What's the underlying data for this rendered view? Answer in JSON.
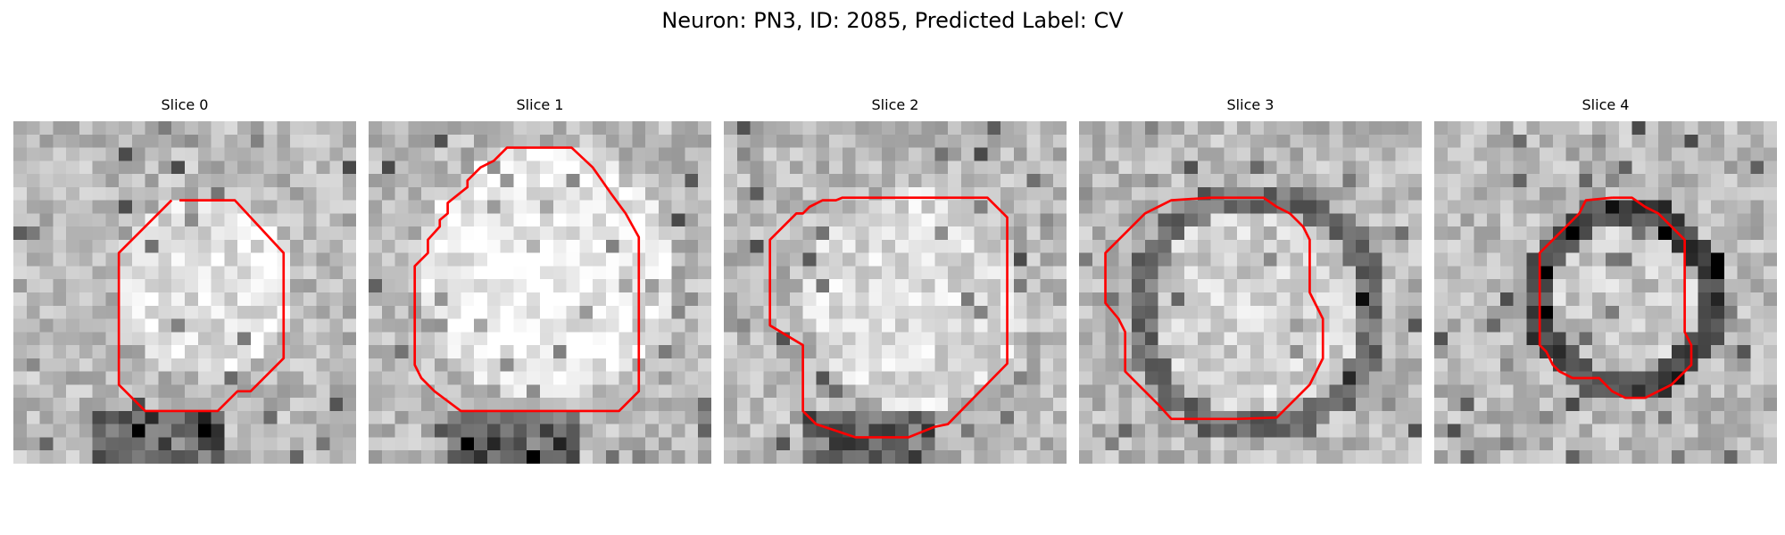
{
  "figure": {
    "title": "Neuron: PN3, ID: 2085, Predicted Label: CV"
  },
  "colors": {
    "contour": "#ff0000"
  },
  "panels": [
    {
      "title": "Slice 0",
      "contour": [
        [
          12.6,
          6
        ],
        [
          16.8,
          6
        ],
        [
          20.5,
          10
        ],
        [
          20.5,
          18
        ],
        [
          18,
          20.5
        ],
        [
          17,
          20.5
        ],
        [
          15.5,
          22
        ],
        [
          10,
          22
        ],
        [
          8,
          20
        ],
        [
          8,
          10
        ],
        [
          12,
          6
        ]
      ]
    },
    {
      "title": "Slice 1",
      "contour": [
        [
          11.5,
          2
        ],
        [
          15.4,
          2
        ],
        [
          17,
          3.5
        ],
        [
          18.4,
          5.5
        ],
        [
          19.5,
          7
        ],
        [
          20.5,
          8.8
        ],
        [
          20.5,
          20.5
        ],
        [
          19,
          22
        ],
        [
          19,
          22
        ],
        [
          7,
          22
        ],
        [
          5,
          20.5
        ],
        [
          4,
          19.5
        ],
        [
          3.5,
          18.5
        ],
        [
          3.5,
          11
        ],
        [
          4.5,
          10
        ],
        [
          4.5,
          9
        ],
        [
          5.4,
          8
        ],
        [
          5.4,
          7.5
        ],
        [
          6,
          7
        ],
        [
          6,
          6.2
        ],
        [
          7.5,
          5
        ],
        [
          7.5,
          4.5
        ],
        [
          8.5,
          3.5
        ],
        [
          9.5,
          3
        ],
        [
          10.5,
          2
        ],
        [
          11.5,
          2
        ]
      ]
    },
    {
      "title": "Slice 2",
      "contour": [
        [
          13,
          5.8
        ],
        [
          20,
          5.8
        ],
        [
          21.5,
          7.3
        ],
        [
          21.5,
          18.4
        ],
        [
          17,
          23
        ],
        [
          16,
          23.2
        ],
        [
          14,
          24
        ],
        [
          10,
          24
        ],
        [
          7,
          23
        ],
        [
          6,
          22
        ],
        [
          6,
          17
        ],
        [
          3.5,
          15.5
        ],
        [
          3.5,
          9
        ],
        [
          5.5,
          7
        ],
        [
          6,
          7
        ],
        [
          6.5,
          6.5
        ],
        [
          7.5,
          6
        ],
        [
          8.5,
          6
        ],
        [
          9,
          5.8
        ],
        [
          13,
          5.8
        ]
      ]
    },
    {
      "title": "Slice 3",
      "contour": [
        [
          10,
          5.8
        ],
        [
          14,
          5.8
        ],
        [
          15,
          6.5
        ],
        [
          16,
          7
        ],
        [
          17,
          8
        ],
        [
          17.5,
          9
        ],
        [
          17.5,
          13
        ],
        [
          18,
          14
        ],
        [
          18.5,
          15
        ],
        [
          18.5,
          18
        ],
        [
          17.5,
          20
        ],
        [
          16.5,
          21
        ],
        [
          15,
          22.5
        ],
        [
          12,
          22.6
        ],
        [
          7,
          22.6
        ],
        [
          6,
          21.5
        ],
        [
          4.5,
          20
        ],
        [
          3.5,
          19
        ],
        [
          3.5,
          16
        ],
        [
          3,
          15
        ],
        [
          2,
          13.8
        ],
        [
          2,
          10
        ],
        [
          3,
          9
        ],
        [
          5,
          7
        ],
        [
          6,
          6.5
        ],
        [
          7,
          6
        ],
        [
          10,
          5.8
        ]
      ]
    },
    {
      "title": "Slice 4",
      "contour": [
        [
          13.5,
          5.8
        ],
        [
          15,
          5.8
        ],
        [
          16,
          6.5
        ],
        [
          17,
          7
        ],
        [
          18,
          8
        ],
        [
          19,
          9
        ],
        [
          19,
          15
        ],
        [
          19,
          16
        ],
        [
          19.5,
          17
        ],
        [
          19.5,
          18.5
        ],
        [
          18,
          20
        ],
        [
          16,
          21
        ],
        [
          14.5,
          21
        ],
        [
          13.5,
          20.5
        ],
        [
          12.5,
          19.5
        ],
        [
          10.5,
          19.5
        ],
        [
          9.5,
          19
        ],
        [
          9,
          18.5
        ],
        [
          8.5,
          17.5
        ],
        [
          8,
          17
        ],
        [
          8,
          10
        ],
        [
          9,
          9
        ],
        [
          10,
          8
        ],
        [
          11,
          7
        ],
        [
          11.5,
          6
        ],
        [
          13.5,
          5.8
        ]
      ]
    }
  ]
}
